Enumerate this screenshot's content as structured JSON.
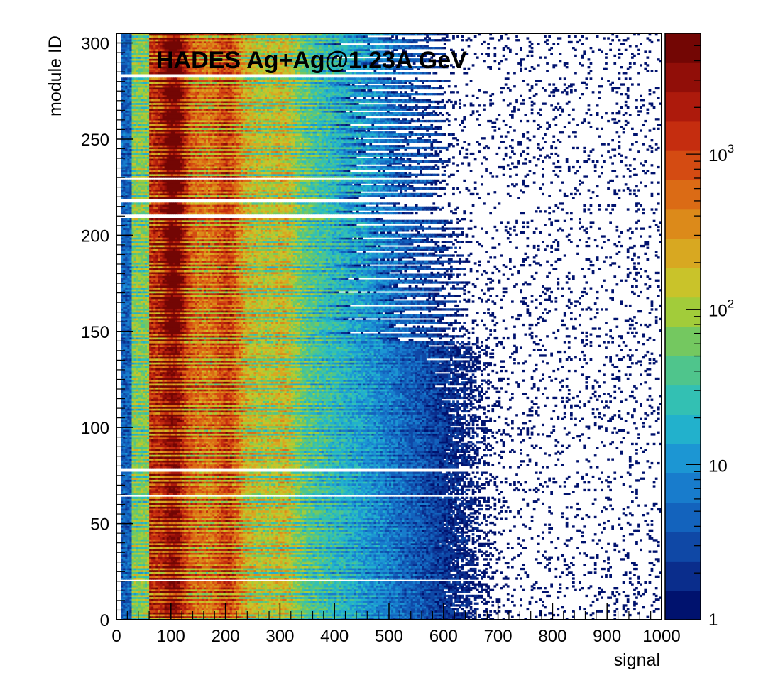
{
  "chart_data": {
    "type": "heatmap",
    "title": "HADES Ag+Ag@1.23A GeV",
    "xlabel": "signal",
    "ylabel": "module ID",
    "xlim": [
      0,
      1000
    ],
    "ylim": [
      0,
      305
    ],
    "x_ticks": [
      "0",
      "100",
      "200",
      "300",
      "400",
      "500",
      "600",
      "700",
      "800",
      "900",
      "1000"
    ],
    "y_ticks": [
      "0",
      "50",
      "100",
      "150",
      "200",
      "250",
      "300"
    ],
    "color_scale": {
      "type": "log",
      "range": [
        1,
        6000
      ],
      "tick_labels": [
        {
          "value": 1,
          "base": "1",
          "exp": ""
        },
        {
          "value": 10,
          "base": "10",
          "exp": ""
        },
        {
          "value": 100,
          "base": "10",
          "exp": "2"
        },
        {
          "value": 1000,
          "base": "10",
          "exp": "3"
        }
      ],
      "palette": [
        "#00126e",
        "#0a2d8c",
        "#0f48a6",
        "#1363bd",
        "#187ccc",
        "#1c96d3",
        "#22b1cc",
        "#33c0b3",
        "#4fc58c",
        "#74c860",
        "#a2cc3a",
        "#c9c32a",
        "#d8a821",
        "#dc8a1a",
        "#db6b15",
        "#d44b12",
        "#c52d0f",
        "#ad1a0c",
        "#910e08",
        "#730604"
      ]
    },
    "grid": false,
    "features": {
      "peak_signals": [
        105,
        205,
        310
      ],
      "gap_module_ids": [
        20.5,
        64.5,
        78,
        210,
        218,
        229.5,
        283
      ],
      "module_regions": [
        {
          "from": 0,
          "to": 145,
          "max_signal": 1000
        },
        {
          "from": 145,
          "to": 210,
          "max_signal": 640
        },
        {
          "from": 210,
          "to": 300,
          "max_signal": 600
        }
      ]
    }
  }
}
